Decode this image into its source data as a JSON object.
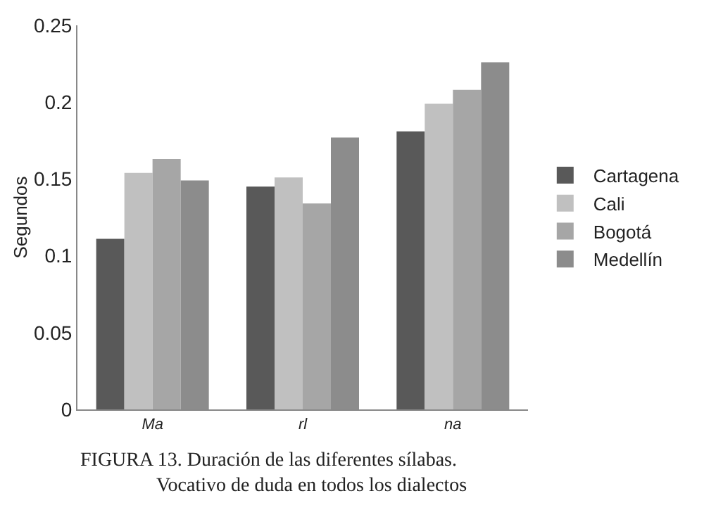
{
  "chart_data": {
    "type": "bar",
    "ylabel": "Segundos",
    "categories": [
      "Ma",
      "rl",
      "na"
    ],
    "series": [
      {
        "name": "Cartagena",
        "color": "#595959",
        "values": [
          0.111,
          0.145,
          0.181
        ]
      },
      {
        "name": "Cali",
        "color": "#c0c0c0",
        "values": [
          0.154,
          0.151,
          0.199
        ]
      },
      {
        "name": "Bogotá",
        "color": "#a6a6a6",
        "values": [
          0.163,
          0.134,
          0.208
        ]
      },
      {
        "name": "Medellín",
        "color": "#8c8c8c",
        "values": [
          0.149,
          0.177,
          0.226
        ]
      }
    ],
    "ylim": [
      0,
      0.25
    ],
    "yticks": [
      0,
      0.05,
      0.1,
      0.15,
      0.2,
      0.25
    ],
    "grid": false,
    "legend": "right",
    "annotations": [
      "FIGURA 13. Duración de las diferentes sílabas.",
      "Vocativo de duda en todos los dialectos"
    ]
  }
}
